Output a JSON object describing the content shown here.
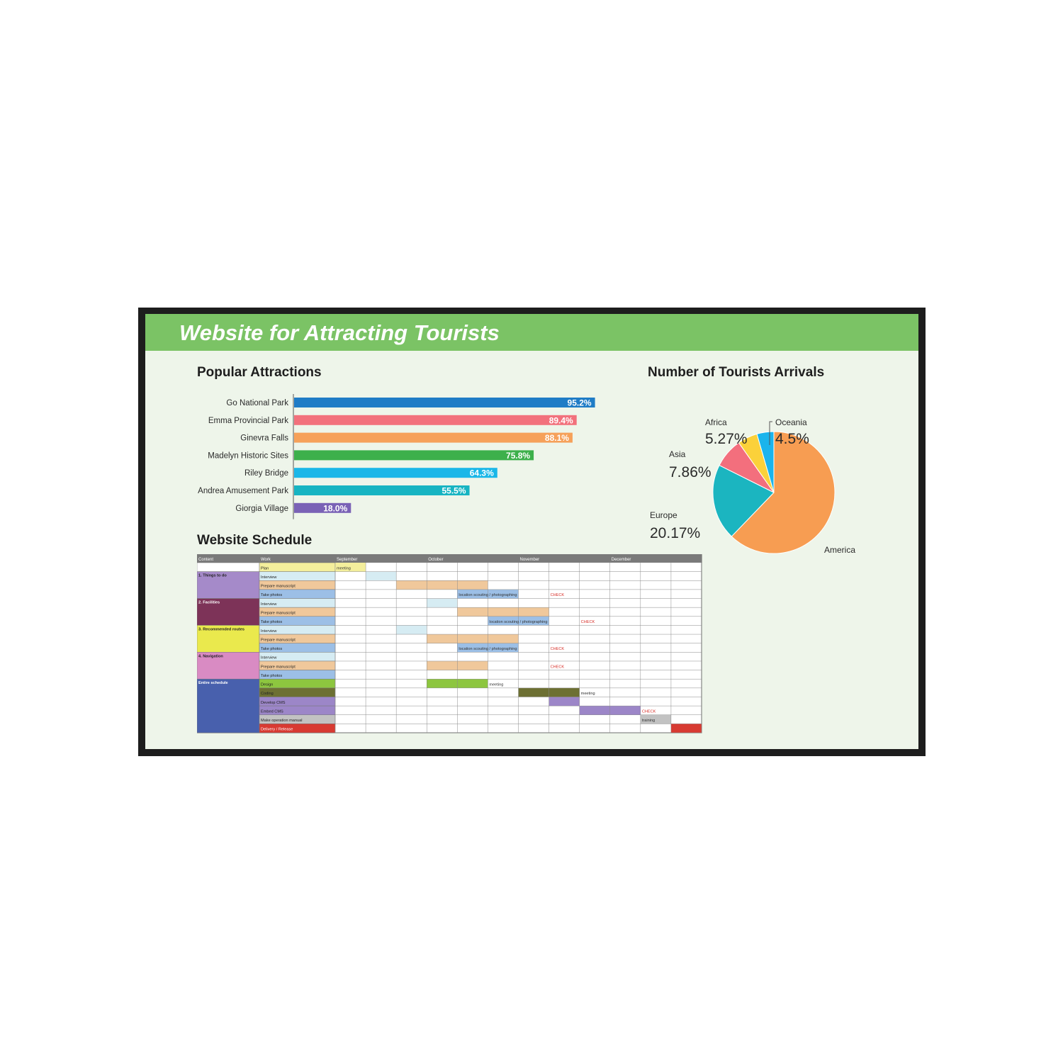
{
  "header": {
    "title": "Website for Attracting Tourists"
  },
  "colors": {
    "banner": "#7bc365",
    "screen_bg": "#eef5ea",
    "bezel": "#1d1d1d"
  },
  "chart_data": [
    {
      "type": "bar",
      "orientation": "horizontal",
      "title": "Popular Attractions",
      "categories": [
        "Go National Park",
        "Emma Provincial Park",
        "Ginevra Falls",
        "Madelyn Historic Sites",
        "Riley Bridge",
        "Andrea Amusement Park",
        "Giorgia Village"
      ],
      "values": [
        95.2,
        89.4,
        88.1,
        75.8,
        64.3,
        55.5,
        18.0
      ],
      "value_labels": [
        "95.2%",
        "89.4%",
        "88.1%",
        "75.8%",
        "64.3%",
        "55.5%",
        "18.0%"
      ],
      "colors": [
        "#1f7cc6",
        "#f2717c",
        "#f6a15a",
        "#3db04b",
        "#1ab7e8",
        "#17b4c2",
        "#7a62b6"
      ],
      "xlim": [
        0,
        100
      ],
      "grid": false
    },
    {
      "type": "pie",
      "title": "Number of Tourists Arrivals",
      "slices": [
        {
          "name": "America",
          "value": 62.2,
          "label": "62.2%",
          "color": "#f79d52"
        },
        {
          "name": "Europe",
          "value": 20.17,
          "label": "20.17%",
          "color": "#1bb5c0"
        },
        {
          "name": "Asia",
          "value": 7.86,
          "label": "7.86%",
          "color": "#f36f7d"
        },
        {
          "name": "Africa",
          "value": 5.27,
          "label": "5.27%",
          "color": "#fbd13a"
        },
        {
          "name": "Oceania",
          "value": 4.5,
          "label": "4.5%",
          "color": "#1ab4ec"
        }
      ]
    }
  ],
  "schedule": {
    "title": "Website Schedule",
    "headers": {
      "content": "Content",
      "work": "Work"
    },
    "months": [
      {
        "name": "September",
        "start": 0
      },
      {
        "name": "October",
        "start": 3
      },
      {
        "name": "November",
        "start": 6
      },
      {
        "name": "December",
        "start": 9
      }
    ],
    "weeks": 12,
    "groups": [
      {
        "name": "",
        "color": "#ffffff",
        "text_color": "#222222",
        "rows": 1
      },
      {
        "name": "1. Things to do",
        "color": "#a58ac9",
        "text_color": "#222222",
        "rows": 3
      },
      {
        "name": "2. Facilities",
        "color": "#7d3358",
        "text_color": "#ffffff",
        "rows": 3
      },
      {
        "name": "3. Recommended routes",
        "color": "#eae94d",
        "text_color": "#222222",
        "rows": 3
      },
      {
        "name": "4. Navigation",
        "color": "#d98bc3",
        "text_color": "#222222",
        "rows": 3
      },
      {
        "name": "Entire schedule",
        "color": "#4860ad",
        "text_color": "#ffffff",
        "rows": 6
      }
    ],
    "rows": [
      {
        "task": "Plan",
        "color": "#f4ef9c",
        "bars": [
          {
            "start": 0,
            "span": 1,
            "color": "#f4ef9c"
          }
        ],
        "notes": [
          {
            "col": 0,
            "text": "meeting",
            "color": "#333333"
          }
        ]
      },
      {
        "task": "Interview",
        "color": "#d6ecf3",
        "bars": [
          {
            "start": 1,
            "span": 1,
            "color": "#d6ecf3"
          }
        ],
        "notes": []
      },
      {
        "task": "Prepare manuscript",
        "color": "#f0c89b",
        "bars": [
          {
            "start": 2,
            "span": 3,
            "color": "#f0c89b"
          }
        ],
        "notes": []
      },
      {
        "task": "Take photos",
        "color": "#9cbfe6",
        "bars": [
          {
            "start": 4,
            "span": 2,
            "color": "#9cbfe6"
          }
        ],
        "notes": [
          {
            "col": 4,
            "text": "location scouting / photographing",
            "color": "#333333"
          },
          {
            "col": 7,
            "text": "CHECK",
            "color": "#d8302a"
          }
        ]
      },
      {
        "task": "Interview",
        "color": "#d6ecf3",
        "bars": [
          {
            "start": 3,
            "span": 1,
            "color": "#d6ecf3"
          }
        ],
        "notes": []
      },
      {
        "task": "Prepare manuscript",
        "color": "#f0c89b",
        "bars": [
          {
            "start": 4,
            "span": 3,
            "color": "#f0c89b"
          }
        ],
        "notes": []
      },
      {
        "task": "Take photos",
        "color": "#9cbfe6",
        "bars": [
          {
            "start": 5,
            "span": 2,
            "color": "#9cbfe6"
          }
        ],
        "notes": [
          {
            "col": 5,
            "text": "location scouting / photographing",
            "color": "#333333"
          },
          {
            "col": 8,
            "text": "CHECK",
            "color": "#d8302a"
          }
        ]
      },
      {
        "task": "Interview",
        "color": "#d6ecf3",
        "bars": [
          {
            "start": 2,
            "span": 1,
            "color": "#d6ecf3"
          }
        ],
        "notes": []
      },
      {
        "task": "Prepare manuscript",
        "color": "#f0c89b",
        "bars": [
          {
            "start": 3,
            "span": 3,
            "color": "#f0c89b"
          }
        ],
        "notes": []
      },
      {
        "task": "Take photos",
        "color": "#9cbfe6",
        "bars": [
          {
            "start": 4,
            "span": 2,
            "color": "#9cbfe6"
          }
        ],
        "notes": [
          {
            "col": 4,
            "text": "location scouting / photographing",
            "color": "#333333"
          },
          {
            "col": 7,
            "text": "CHECK",
            "color": "#d8302a"
          }
        ]
      },
      {
        "task": "Interview",
        "color": "#d6ecf3",
        "bars": [],
        "notes": []
      },
      {
        "task": "Prepare manuscript",
        "color": "#f0c89b",
        "bars": [
          {
            "start": 3,
            "span": 2,
            "color": "#f0c89b"
          }
        ],
        "notes": [
          {
            "col": 7,
            "text": "CHECK",
            "color": "#d8302a"
          }
        ]
      },
      {
        "task": "Take photos",
        "color": "#9cbfe6",
        "bars": [],
        "notes": []
      },
      {
        "task": "Design",
        "color": "#8dc63f",
        "bars": [
          {
            "start": 3,
            "span": 2,
            "color": "#8dc63f"
          }
        ],
        "notes": [
          {
            "col": 5,
            "text": "meeting",
            "color": "#333333"
          }
        ]
      },
      {
        "task": "Coding",
        "color": "#6d7033",
        "bars": [
          {
            "start": 6,
            "span": 2,
            "color": "#6d7033"
          }
        ],
        "notes": [
          {
            "col": 8,
            "text": "meeting",
            "color": "#333333"
          }
        ]
      },
      {
        "task": "Develop CMS",
        "color": "#9c86c8",
        "bars": [
          {
            "start": 7,
            "span": 1,
            "color": "#9c86c8"
          }
        ],
        "notes": []
      },
      {
        "task": "Embed CMS",
        "color": "#9c86c8",
        "bars": [
          {
            "start": 8,
            "span": 2,
            "color": "#9c86c8"
          }
        ],
        "notes": [
          {
            "col": 10,
            "text": "CHECK",
            "color": "#d8302a"
          }
        ]
      },
      {
        "task": "Make operation manual",
        "color": "#c2c2c2",
        "bars": [
          {
            "start": 10,
            "span": 1,
            "color": "#c2c2c2"
          }
        ],
        "notes": [
          {
            "col": 10,
            "text": "training",
            "color": "#333333"
          }
        ]
      },
      {
        "task": "Delivery / Release",
        "color": "#d83a32",
        "text_color": "#ffffff",
        "bars": [
          {
            "start": 11,
            "span": 1,
            "color": "#d83a32"
          }
        ],
        "notes": []
      }
    ]
  }
}
